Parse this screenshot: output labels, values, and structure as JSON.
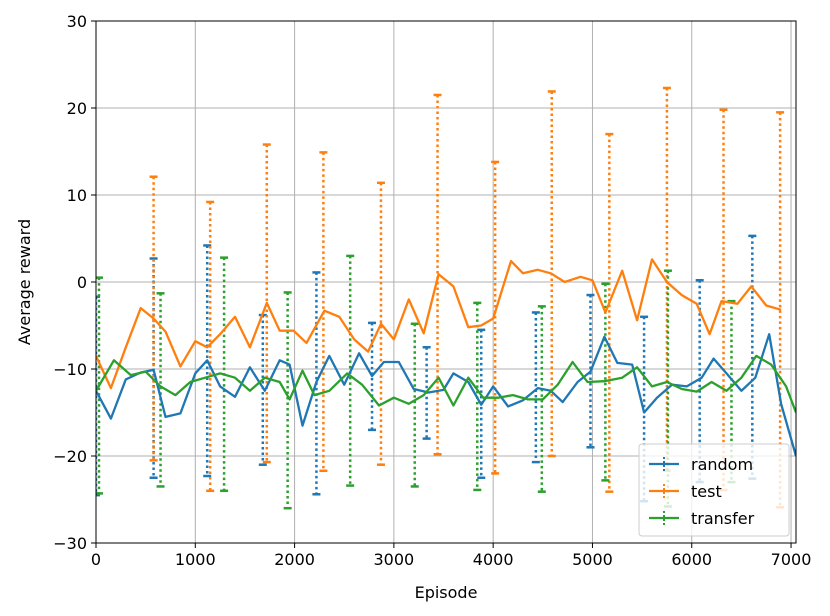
{
  "chart_data": {
    "type": "line",
    "title": "",
    "xlabel": "Episode",
    "ylabel": "Average reward",
    "xlim": [
      0,
      7050
    ],
    "ylim": [
      -30,
      30
    ],
    "xticks": [
      0,
      1000,
      2000,
      3000,
      4000,
      5000,
      6000,
      7000
    ],
    "xtick_labels": [
      "0",
      "1000",
      "2000",
      "3000",
      "4000",
      "5000",
      "6000",
      "7000"
    ],
    "yticks": [
      -30,
      -20,
      -10,
      0,
      10,
      20,
      30
    ],
    "ytick_labels": [
      "−30",
      "−20",
      "−10",
      "0",
      "10",
      "20",
      "30"
    ],
    "grid": true,
    "legend_position": "bottom-right",
    "series": [
      {
        "name": "random",
        "color": "#1f77b4",
        "x": [
          0,
          150,
          300,
          450,
          580,
          700,
          850,
          1000,
          1120,
          1250,
          1400,
          1550,
          1700,
          1850,
          1950,
          2080,
          2220,
          2350,
          2500,
          2650,
          2780,
          2900,
          3050,
          3200,
          3350,
          3500,
          3600,
          3750,
          3880,
          4000,
          4150,
          4300,
          4450,
          4580,
          4700,
          4850,
          4980,
          5120,
          5250,
          5400,
          5520,
          5650,
          5800,
          5950,
          6100,
          6220,
          6350,
          6500,
          6640,
          6780,
          6900,
          7050
        ],
        "y": [
          -12.5,
          -15.7,
          -11.2,
          -10.4,
          -10.1,
          -15.5,
          -15.1,
          -10.5,
          -9.0,
          -12.0,
          -13.2,
          -9.8,
          -12.5,
          -9.0,
          -9.5,
          -16.5,
          -11.5,
          -8.5,
          -11.8,
          -8.2,
          -10.8,
          -9.2,
          -9.2,
          -12.3,
          -12.7,
          -12.4,
          -10.5,
          -11.5,
          -14.1,
          -12.0,
          -14.3,
          -13.6,
          -12.2,
          -12.5,
          -13.8,
          -11.5,
          -10.3,
          -6.3,
          -9.3,
          -9.5,
          -15.0,
          -13.3,
          -11.8,
          -12.0,
          -11.0,
          -8.8,
          -10.5,
          -12.5,
          -11.0,
          -6.0,
          -14.0,
          -20.0
        ],
        "error_bars": [
          {
            "x": 0,
            "y": -11.5,
            "low": -24.5,
            "high": -1.7
          },
          {
            "x": 580,
            "y": -10.1,
            "low": -22.5,
            "high": 2.7
          },
          {
            "x": 1120,
            "y": -9.0,
            "low": -22.3,
            "high": 4.2
          },
          {
            "x": 1680,
            "y": -12.5,
            "low": -21.0,
            "high": -3.8
          },
          {
            "x": 2220,
            "y": -11.5,
            "low": -24.4,
            "high": 1.1
          },
          {
            "x": 2780,
            "y": -10.8,
            "low": -17.0,
            "high": -4.7
          },
          {
            "x": 3330,
            "y": -12.7,
            "low": -18.0,
            "high": -7.5
          },
          {
            "x": 3880,
            "y": -14.1,
            "low": -22.5,
            "high": -5.5
          },
          {
            "x": 4430,
            "y": -12.2,
            "low": -20.7,
            "high": -3.5
          },
          {
            "x": 4980,
            "y": -10.3,
            "low": -19.0,
            "high": -1.5
          },
          {
            "x": 5520,
            "y": -15.0,
            "low": -25.2,
            "high": -4.0
          },
          {
            "x": 6080,
            "y": -11.0,
            "low": -23.0,
            "high": 0.2
          },
          {
            "x": 6610,
            "y": -11.0,
            "low": -22.6,
            "high": 5.3
          }
        ]
      },
      {
        "name": "test",
        "color": "#ff7f0e",
        "x": [
          0,
          150,
          300,
          450,
          580,
          700,
          850,
          1000,
          1120,
          1250,
          1400,
          1550,
          1720,
          1850,
          1990,
          2120,
          2300,
          2450,
          2600,
          2740,
          2870,
          3000,
          3150,
          3300,
          3450,
          3600,
          3750,
          3880,
          4000,
          4180,
          4300,
          4450,
          4580,
          4720,
          4880,
          5000,
          5130,
          5300,
          5450,
          5600,
          5750,
          5900,
          6050,
          6180,
          6300,
          6460,
          6600,
          6750,
          6900
        ],
        "y": [
          -8.5,
          -12.2,
          -7.5,
          -3.0,
          -4.2,
          -5.7,
          -9.7,
          -6.8,
          -7.5,
          -6.0,
          -4.0,
          -7.5,
          -2.4,
          -5.6,
          -5.6,
          -7.0,
          -3.3,
          -4.0,
          -6.6,
          -8.0,
          -4.8,
          -6.6,
          -2.0,
          -5.9,
          0.9,
          -0.5,
          -5.2,
          -5.0,
          -4.2,
          2.4,
          1.0,
          1.4,
          1.0,
          0.0,
          0.6,
          0.2,
          -3.5,
          1.3,
          -4.4,
          2.6,
          0.0,
          -1.5,
          -2.5,
          -6.0,
          -2.2,
          -2.5,
          -0.5,
          -2.7,
          -3.2
        ],
        "error_bars": [
          {
            "x": 580,
            "y": -4.2,
            "low": -20.5,
            "high": 12.1
          },
          {
            "x": 1150,
            "y": -7.5,
            "low": -24.0,
            "high": 9.2
          },
          {
            "x": 1720,
            "y": -2.4,
            "low": -20.7,
            "high": 15.8
          },
          {
            "x": 2290,
            "y": -3.3,
            "low": -21.7,
            "high": 14.9
          },
          {
            "x": 2870,
            "y": -4.8,
            "low": -21.0,
            "high": 11.4
          },
          {
            "x": 3440,
            "y": 0.9,
            "low": -19.8,
            "high": 21.5
          },
          {
            "x": 4020,
            "y": -4.2,
            "low": -22.0,
            "high": 13.8
          },
          {
            "x": 4590,
            "y": 1.0,
            "low": -20.0,
            "high": 21.9
          },
          {
            "x": 5170,
            "y": -3.5,
            "low": -24.1,
            "high": 17.0
          },
          {
            "x": 5750,
            "y": 0.0,
            "low": -21.7,
            "high": 22.3
          },
          {
            "x": 6320,
            "y": -2.2,
            "low": -23.9,
            "high": 19.8
          },
          {
            "x": 6890,
            "y": -3.2,
            "low": -25.9,
            "high": 19.5
          }
        ]
      },
      {
        "name": "transfer",
        "color": "#2ca02c",
        "x": [
          0,
          180,
          350,
          500,
          650,
          800,
          950,
          1100,
          1250,
          1400,
          1550,
          1700,
          1850,
          1950,
          2080,
          2200,
          2350,
          2530,
          2680,
          2850,
          3000,
          3150,
          3300,
          3450,
          3600,
          3750,
          3900,
          4050,
          4200,
          4350,
          4500,
          4650,
          4800,
          4950,
          5120,
          5300,
          5450,
          5600,
          5750,
          5900,
          6050,
          6200,
          6350,
          6500,
          6650,
          6800,
          6950,
          7050
        ],
        "y": [
          -12.5,
          -9.0,
          -10.7,
          -10.3,
          -12.0,
          -13.0,
          -11.5,
          -11.0,
          -10.5,
          -11.0,
          -12.5,
          -11.0,
          -11.5,
          -13.5,
          -10.2,
          -13.0,
          -12.5,
          -10.5,
          -11.8,
          -14.2,
          -13.3,
          -14.0,
          -13.0,
          -11.0,
          -14.2,
          -11.0,
          -13.3,
          -13.3,
          -13.0,
          -13.5,
          -13.5,
          -11.8,
          -9.2,
          -11.5,
          -11.4,
          -11.0,
          -9.8,
          -12.0,
          -11.5,
          -12.3,
          -12.6,
          -11.5,
          -12.5,
          -11.0,
          -8.5,
          -9.5,
          -12.0,
          -15.0
        ],
        "error_bars": [
          {
            "x": 30,
            "y": -12.5,
            "low": -24.3,
            "high": 0.5
          },
          {
            "x": 650,
            "y": -12.0,
            "low": -23.5,
            "high": -1.3
          },
          {
            "x": 1290,
            "y": -10.5,
            "low": -24.0,
            "high": 2.8
          },
          {
            "x": 1930,
            "y": -13.5,
            "low": -26.0,
            "high": -1.2
          },
          {
            "x": 2560,
            "y": -10.5,
            "low": -23.4,
            "high": 3.0
          },
          {
            "x": 3210,
            "y": -13.0,
            "low": -23.5,
            "high": -4.8
          },
          {
            "x": 3840,
            "y": -13.3,
            "low": -23.9,
            "high": -2.4
          },
          {
            "x": 4490,
            "y": -13.5,
            "low": -24.1,
            "high": -2.8
          },
          {
            "x": 5130,
            "y": -11.4,
            "low": -22.8,
            "high": -0.2
          },
          {
            "x": 5760,
            "y": -11.5,
            "low": -25.8,
            "high": 1.3
          },
          {
            "x": 6400,
            "y": -12.0,
            "low": -23.0,
            "high": -2.2
          }
        ]
      }
    ]
  }
}
